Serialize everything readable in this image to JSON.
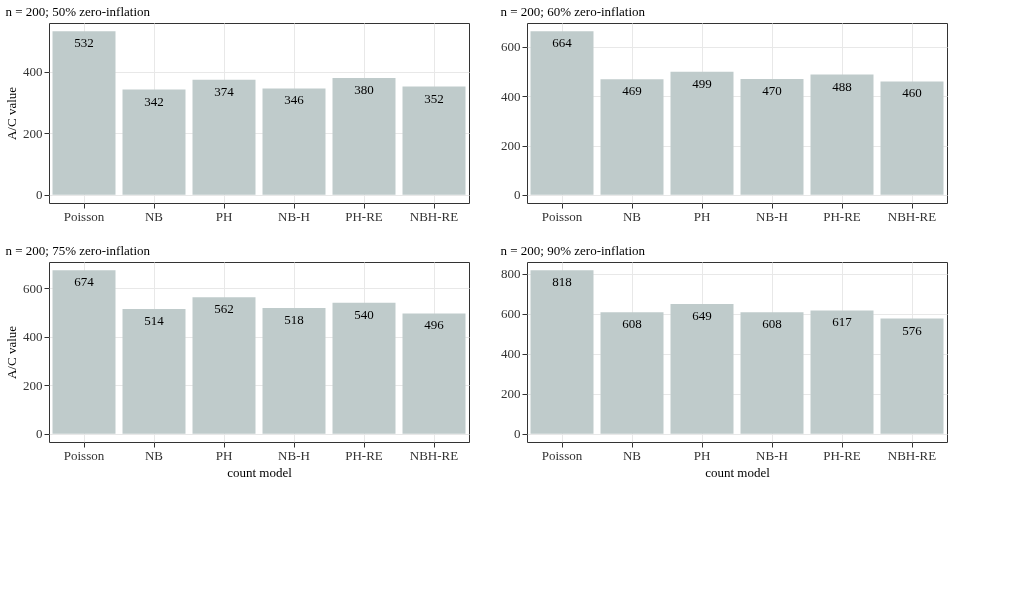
{
  "chart_data": [
    {
      "type": "bar",
      "title": "n = 200; 50% zero-inflation",
      "ylabel": "A/C value",
      "categories": [
        "Poisson",
        "NB",
        "PH",
        "NB-H",
        "PH-RE",
        "NBH-RE"
      ],
      "values": [
        532,
        342,
        374,
        346,
        380,
        352
      ],
      "color": "#bfcbcb",
      "ylim": [
        -26.6,
        558.6
      ],
      "yticks": [
        0,
        200,
        400
      ],
      "data_labels": true,
      "grid": true
    },
    {
      "type": "bar",
      "title": "n = 200; 60% zero-inflation",
      "categories": [
        "Poisson",
        "NB",
        "PH",
        "NB-H",
        "PH-RE",
        "NBH-RE"
      ],
      "values": [
        664,
        469,
        499,
        470,
        488,
        460
      ],
      "color": "#bfcbcb",
      "ylim": [
        -33.2,
        697.2
      ],
      "yticks": [
        0,
        200,
        400,
        600
      ],
      "data_labels": true,
      "grid": true
    },
    {
      "type": "bar",
      "title": "n = 200; 75% zero-inflation",
      "ylabel": "A/C value",
      "xlabel": "count model",
      "categories": [
        "Poisson",
        "NB",
        "PH",
        "NB-H",
        "PH-RE",
        "NBH-RE"
      ],
      "values": [
        674,
        514,
        562,
        518,
        540,
        496
      ],
      "color": "#bfcbcb",
      "ylim": [
        -33.7,
        707.7
      ],
      "yticks": [
        0,
        200,
        400,
        600
      ],
      "data_labels": true,
      "grid": true
    },
    {
      "type": "bar",
      "title": "n = 200; 90% zero-inflation",
      "xlabel": "count model",
      "categories": [
        "Poisson",
        "NB",
        "PH",
        "NB-H",
        "PH-RE",
        "NBH-RE"
      ],
      "values": [
        818,
        608,
        649,
        608,
        617,
        576
      ],
      "color": "#bfcbcb",
      "ylim": [
        -40.9,
        858.9
      ],
      "yticks": [
        0,
        200,
        400,
        600,
        800
      ],
      "data_labels": true,
      "grid": true
    }
  ]
}
